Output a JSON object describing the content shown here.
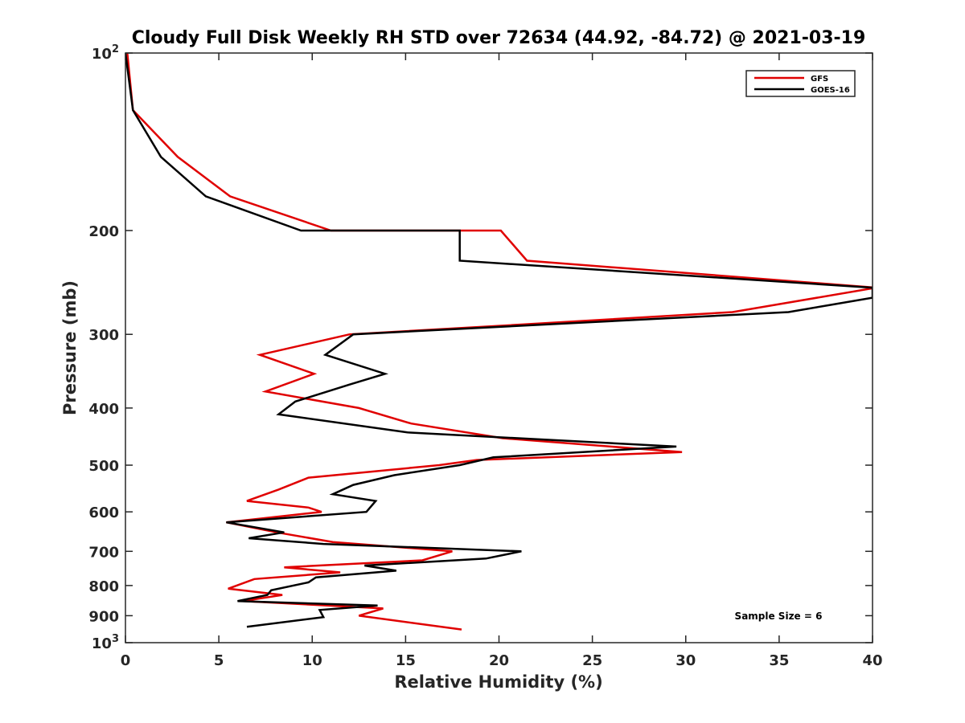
{
  "chart_data": {
    "type": "line",
    "title": "Cloudy Full Disk Weekly RH STD over 72634 (44.92, -84.72) @ 2021-03-19",
    "xlabel": "Relative Humidity (%)",
    "ylabel": "Pressure (mb)",
    "xlim": [
      0,
      40
    ],
    "ylim": [
      100,
      1000
    ],
    "y_scale": "log",
    "y_reversed": true,
    "x_ticks": [
      0,
      5,
      10,
      15,
      20,
      25,
      30,
      35,
      40
    ],
    "x_tick_labels": [
      "0",
      "5",
      "10",
      "15",
      "20",
      "25",
      "30",
      "35",
      "40"
    ],
    "y_ticks": [
      100,
      200,
      300,
      400,
      500,
      600,
      700,
      800,
      900,
      1000
    ],
    "y_tick_labels": [
      {
        "base": "10",
        "exp": "2"
      },
      {
        "base": "200",
        "exp": ""
      },
      {
        "base": "300",
        "exp": ""
      },
      {
        "base": "400",
        "exp": ""
      },
      {
        "base": "500",
        "exp": ""
      },
      {
        "base": "600",
        "exp": ""
      },
      {
        "base": "700",
        "exp": ""
      },
      {
        "base": "800",
        "exp": ""
      },
      {
        "base": "900",
        "exp": ""
      },
      {
        "base": "10",
        "exp": "3"
      }
    ],
    "grid": false,
    "legend_position": "top-right",
    "annotation": "Sample Size = 6",
    "series": [
      {
        "name": "GFS",
        "color": "#e00000",
        "points": [
          [
            0.1,
            100
          ],
          [
            0.4,
            125
          ],
          [
            2.8,
            150
          ],
          [
            5.6,
            175
          ],
          [
            11.0,
            200
          ],
          [
            20.1,
            200
          ],
          [
            21.5,
            225
          ],
          [
            40.2,
            250
          ],
          [
            32.5,
            275
          ],
          [
            20.2,
            290
          ],
          [
            12.0,
            300
          ],
          [
            7.2,
            325
          ],
          [
            10.1,
            350
          ],
          [
            7.5,
            375
          ],
          [
            12.5,
            400
          ],
          [
            15.3,
            425
          ],
          [
            20.2,
            450
          ],
          [
            29.8,
            475
          ],
          [
            18.8,
            490
          ],
          [
            16.8,
            500
          ],
          [
            9.8,
            525
          ],
          [
            8.2,
            550
          ],
          [
            6.5,
            575
          ],
          [
            9.8,
            590
          ],
          [
            10.5,
            600
          ],
          [
            5.4,
            625
          ],
          [
            8.1,
            650
          ],
          [
            11.1,
            675
          ],
          [
            17.5,
            700
          ],
          [
            15.9,
            725
          ],
          [
            8.5,
            745
          ],
          [
            11.5,
            760
          ],
          [
            6.9,
            780
          ],
          [
            5.5,
            810
          ],
          [
            8.4,
            830
          ],
          [
            6.3,
            850
          ],
          [
            13.8,
            875
          ],
          [
            12.5,
            900
          ],
          [
            18.0,
            950
          ]
        ]
      },
      {
        "name": "GOES-16",
        "color": "#000000",
        "points": [
          [
            0.0,
            100
          ],
          [
            0.4,
            125
          ],
          [
            1.9,
            150
          ],
          [
            4.3,
            175
          ],
          [
            9.4,
            200
          ],
          [
            17.9,
            200
          ],
          [
            17.9,
            225
          ],
          [
            40.0,
            250
          ],
          [
            40.0,
            260
          ],
          [
            35.5,
            275
          ],
          [
            12.2,
            300
          ],
          [
            10.7,
            325
          ],
          [
            13.9,
            350
          ],
          [
            12.0,
            365
          ],
          [
            9.1,
            390
          ],
          [
            8.2,
            410
          ],
          [
            15.1,
            440
          ],
          [
            29.5,
            465
          ],
          [
            19.7,
            485
          ],
          [
            17.9,
            500
          ],
          [
            14.4,
            520
          ],
          [
            12.2,
            540
          ],
          [
            11.1,
            560
          ],
          [
            13.4,
            575
          ],
          [
            12.9,
            600
          ],
          [
            5.4,
            625
          ],
          [
            8.5,
            650
          ],
          [
            6.6,
            665
          ],
          [
            10.6,
            680
          ],
          [
            21.2,
            700
          ],
          [
            19.3,
            720
          ],
          [
            12.8,
            740
          ],
          [
            14.5,
            755
          ],
          [
            10.2,
            775
          ],
          [
            9.8,
            790
          ],
          [
            7.8,
            815
          ],
          [
            7.6,
            830
          ],
          [
            6.0,
            850
          ],
          [
            13.5,
            865
          ],
          [
            10.4,
            880
          ],
          [
            10.6,
            905
          ],
          [
            6.5,
            940
          ]
        ]
      }
    ]
  }
}
